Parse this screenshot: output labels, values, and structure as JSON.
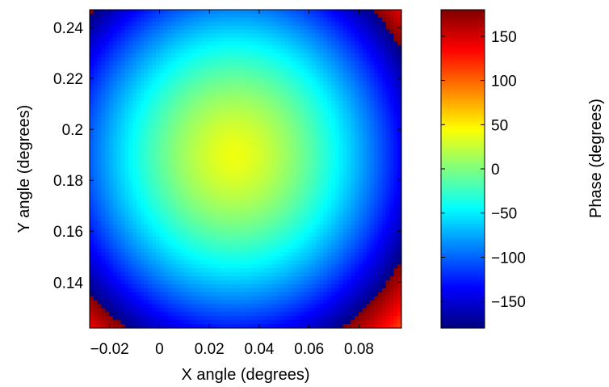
{
  "chart_data": {
    "type": "heatmap",
    "title": "",
    "xlabel": "X angle (degrees)",
    "ylabel": "Y angle (degrees)",
    "xlim": [
      -0.028,
      0.097
    ],
    "ylim": [
      0.122,
      0.247
    ],
    "x_ticks": [
      {
        "value": -0.02,
        "label": "−0.02"
      },
      {
        "value": 0,
        "label": "0"
      },
      {
        "value": 0.02,
        "label": "0.02"
      },
      {
        "value": 0.04,
        "label": "0.04"
      },
      {
        "value": 0.06,
        "label": "0.06"
      },
      {
        "value": 0.08,
        "label": "0.08"
      }
    ],
    "y_ticks": [
      {
        "value": 0.14,
        "label": "0.14"
      },
      {
        "value": 0.16,
        "label": "0.16"
      },
      {
        "value": 0.18,
        "label": "0.18"
      },
      {
        "value": 0.2,
        "label": "0.2"
      },
      {
        "value": 0.22,
        "label": "0.22"
      },
      {
        "value": 0.24,
        "label": "0.24"
      }
    ],
    "field": {
      "description": "wrapped phase map, concentric fringes",
      "center": {
        "x": 0.03,
        "y": 0.19
      },
      "center_phase": 40,
      "phase_gradient_deg_per_degree_radius": 2000,
      "wrap_range": [
        -180,
        180
      ]
    },
    "colorbar": {
      "label": "Phase (degrees)",
      "colormap": "jet",
      "range": [
        -180,
        180
      ],
      "ticks": [
        {
          "value": 150,
          "label": "150"
        },
        {
          "value": 100,
          "label": "100"
        },
        {
          "value": 50,
          "label": "50"
        },
        {
          "value": 0,
          "label": "0"
        },
        {
          "value": -50,
          "label": "−50"
        },
        {
          "value": -100,
          "label": "−100"
        },
        {
          "value": -150,
          "label": "−150"
        }
      ]
    },
    "grid": false
  }
}
